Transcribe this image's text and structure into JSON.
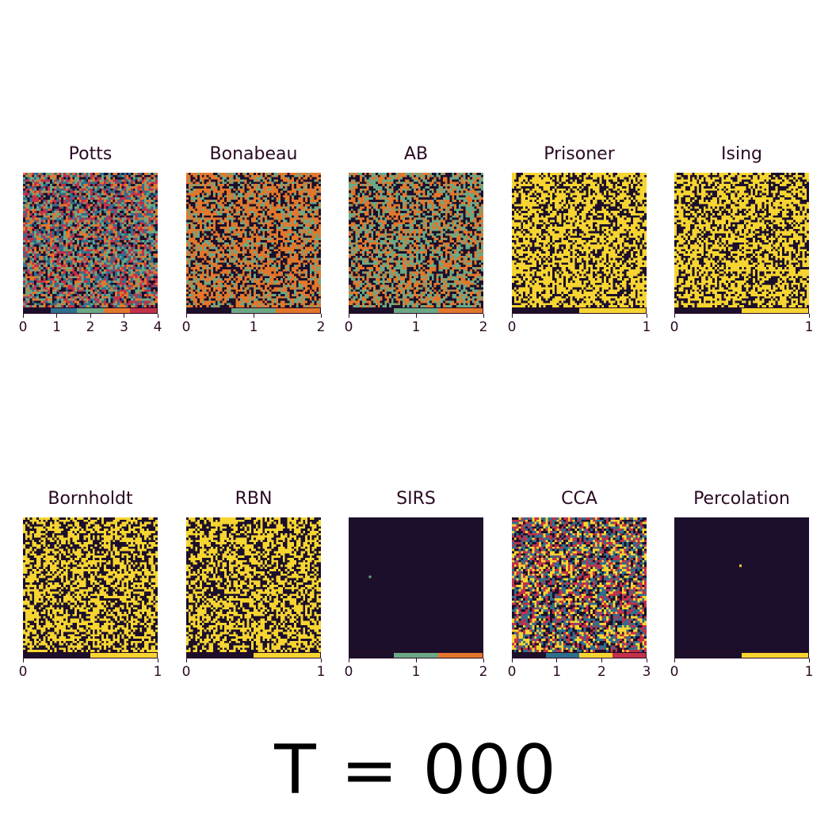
{
  "figure": {
    "time_label": "T = 000"
  },
  "colors": {
    "dark": "#1b0f2c",
    "blue": "#2e6f8e",
    "green": "#6ba885",
    "orange": "#e2772c",
    "red": "#c2304a",
    "yellow": "#f7d531",
    "axis": "#2a0a24"
  },
  "chart_data": [
    {
      "type": "heatmap",
      "title": "Potts",
      "states": [
        0,
        1,
        2,
        3,
        4
      ],
      "ticks": [
        0,
        1,
        2,
        3,
        4
      ],
      "palette": [
        "#1b0f2c",
        "#2e6f8e",
        "#6ba885",
        "#e2772c",
        "#c2304a"
      ],
      "pattern": "random",
      "weights": [
        0.2,
        0.2,
        0.2,
        0.2,
        0.2
      ]
    },
    {
      "type": "heatmap",
      "title": "Bonabeau",
      "states": [
        0,
        1,
        2
      ],
      "ticks": [
        0,
        1,
        2
      ],
      "palette": [
        "#1b0f2c",
        "#6ba885",
        "#e2772c"
      ],
      "pattern": "random",
      "weights": [
        0.32,
        0.2,
        0.48
      ]
    },
    {
      "type": "heatmap",
      "title": "AB",
      "states": [
        0,
        1,
        2
      ],
      "ticks": [
        0,
        1,
        2
      ],
      "palette": [
        "#1b0f2c",
        "#6ba885",
        "#e2772c"
      ],
      "pattern": "random",
      "weights": [
        0.34,
        0.33,
        0.33
      ]
    },
    {
      "type": "heatmap",
      "title": "Prisoner",
      "states": [
        0,
        1
      ],
      "ticks": [
        0,
        1
      ],
      "palette": [
        "#1b0f2c",
        "#f7d531"
      ],
      "pattern": "random",
      "weights": [
        0.4,
        0.6
      ]
    },
    {
      "type": "heatmap",
      "title": "Ising",
      "states": [
        0,
        1
      ],
      "ticks": [
        0,
        1
      ],
      "palette": [
        "#1b0f2c",
        "#f7d531"
      ],
      "pattern": "random",
      "weights": [
        0.4,
        0.6
      ]
    },
    {
      "type": "heatmap",
      "title": "Bornholdt",
      "states": [
        0,
        1
      ],
      "ticks": [
        0,
        1
      ],
      "palette": [
        "#1b0f2c",
        "#f7d531"
      ],
      "pattern": "random",
      "weights": [
        0.45,
        0.55
      ]
    },
    {
      "type": "heatmap",
      "title": "RBN",
      "states": [
        0,
        1
      ],
      "ticks": [
        0,
        1
      ],
      "palette": [
        "#1b0f2c",
        "#f7d531"
      ],
      "pattern": "random",
      "weights": [
        0.45,
        0.55
      ]
    },
    {
      "type": "heatmap",
      "title": "SIRS",
      "states": [
        0,
        1,
        2
      ],
      "ticks": [
        0,
        1,
        2
      ],
      "palette": [
        "#1b0f2c",
        "#6ba885",
        "#e2772c"
      ],
      "pattern": "single",
      "seed_cell": {
        "row": 26,
        "col": 9,
        "state": 1
      }
    },
    {
      "type": "heatmap",
      "title": "CCA",
      "states": [
        0,
        1,
        2,
        3
      ],
      "ticks": [
        0,
        1,
        2,
        3
      ],
      "palette": [
        "#1b0f2c",
        "#2e6f8e",
        "#f7d531",
        "#c2304a"
      ],
      "pattern": "random",
      "weights": [
        0.25,
        0.25,
        0.25,
        0.25
      ]
    },
    {
      "type": "heatmap",
      "title": "Percolation",
      "states": [
        0,
        1
      ],
      "ticks": [
        0,
        1
      ],
      "palette": [
        "#1b0f2c",
        "#f7d531"
      ],
      "pattern": "single",
      "seed_cell": {
        "row": 21,
        "col": 29,
        "state": 1
      }
    }
  ]
}
